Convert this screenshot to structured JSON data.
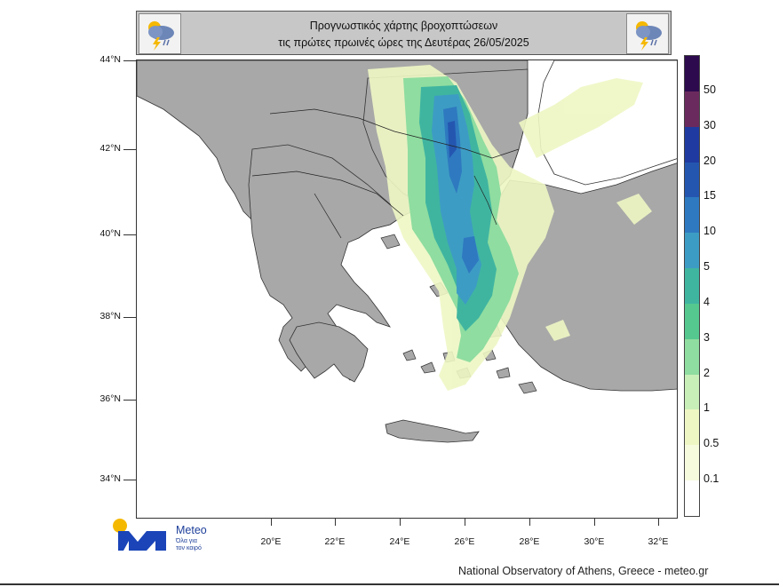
{
  "header": {
    "title_line_1": "Προγνωστικός χάρτης βροχοπτώσεων",
    "title_line_2": "τις πρώτες πρωινές ώρες της Δευτέρας 26/05/2025",
    "icons": [
      "rain-cloud-icon",
      "rain-cloud-icon"
    ]
  },
  "map": {
    "latitude_labels": [
      "44°N",
      "42°N",
      "40°N",
      "38°N",
      "36°N",
      "34°N"
    ],
    "longitude_labels": [
      "20°E",
      "22°E",
      "24°E",
      "26°E",
      "28°E",
      "30°E",
      "32°E"
    ],
    "land_color": "#a8a8a8",
    "sea_color": "#ffffff"
  },
  "legend": {
    "labels": [
      "50",
      "30",
      "20",
      "15",
      "10",
      "5",
      "4",
      "3",
      "2",
      "1",
      "0.5",
      "0.1"
    ],
    "colors": [
      "#2d0a4e",
      "#6b2a5e",
      "#1f3aa0",
      "#2456b0",
      "#2e79c0",
      "#3d9cc4",
      "#3fb5a0",
      "#55c88f",
      "#8fdda0",
      "#c8efb8",
      "#eef7c4",
      "#f7fbde",
      "#ffffff"
    ]
  },
  "branding": {
    "logo_name": "Meteo",
    "tagline_1": "Όλα για",
    "tagline_2": "τον καιρό",
    "logo_colors": {
      "blue": "#1a44b8",
      "sun": "#f5b800"
    }
  },
  "footer": {
    "credit": "National Observatory of Athens, Greece - meteo.gr"
  }
}
